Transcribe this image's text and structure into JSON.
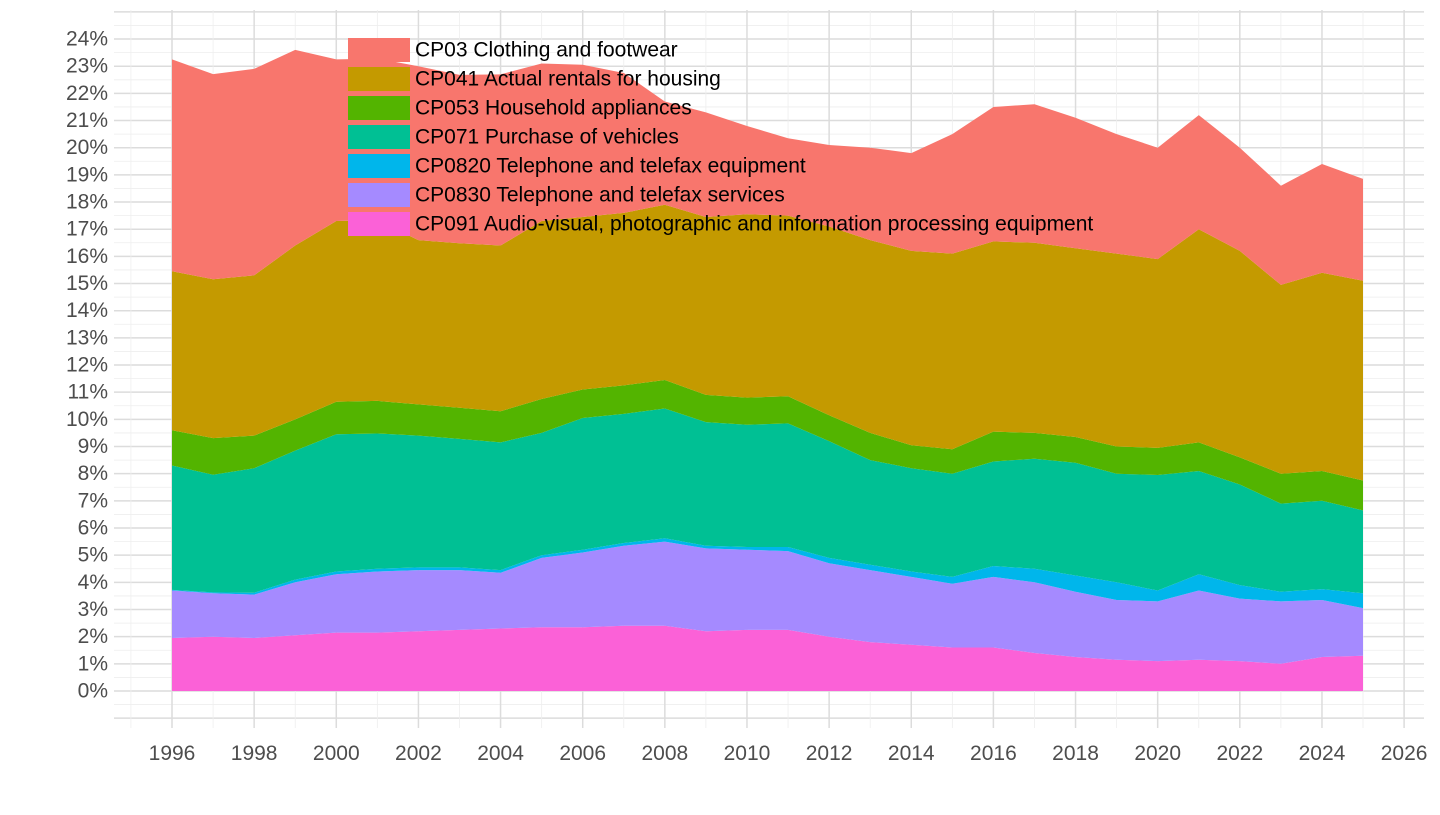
{
  "page": {
    "background": "#FFFFFF"
  },
  "chart_data": {
    "type": "area",
    "stacked": true,
    "title": "",
    "xlabel": "",
    "ylabel": "",
    "grid": "major and minor, on",
    "legend_position": "inside top-left",
    "axis_text_color": "#4D4D4D",
    "legend_text_color": "#000000",
    "grid_major_color": "#DCDCDC",
    "grid_minor_color": "#EEEEEE",
    "xlim": [
      1994.6,
      2026.5
    ],
    "ylim": [
      -1.36,
      25.06
    ],
    "x_tick_years": [
      1996,
      1998,
      2000,
      2002,
      2004,
      2006,
      2008,
      2010,
      2012,
      2014,
      2016,
      2018,
      2020,
      2022,
      2024,
      2026
    ],
    "y_tick_percent": [
      0,
      1,
      2,
      3,
      4,
      5,
      6,
      7,
      8,
      9,
      10,
      11,
      12,
      13,
      14,
      15,
      16,
      17,
      18,
      19,
      20,
      21,
      22,
      23,
      24
    ],
    "y_tick_suffix": "%",
    "x": [
      1996,
      1997,
      1998,
      1999,
      2000,
      2001,
      2002,
      2003,
      2004,
      2005,
      2006,
      2007,
      2008,
      2009,
      2010,
      2011,
      2012,
      2013,
      2014,
      2015,
      2016,
      2017,
      2018,
      2019,
      2020,
      2021,
      2022,
      2023,
      2024,
      2025
    ],
    "series": [
      {
        "code": "CP091",
        "label": "CP091 Audio-visual, photographic and information processing equipment",
        "color": "#FB61D7",
        "values": [
          1.95,
          2.0,
          1.95,
          2.05,
          2.15,
          2.15,
          2.2,
          2.25,
          2.3,
          2.35,
          2.35,
          2.4,
          2.4,
          2.2,
          2.25,
          2.25,
          2.0,
          1.8,
          1.7,
          1.6,
          1.6,
          1.4,
          1.25,
          1.15,
          1.1,
          1.15,
          1.1,
          1.0,
          1.25,
          1.3
        ]
      },
      {
        "code": "CP0830",
        "label": "CP0830 Telephone and telefax services",
        "color": "#A58AFF",
        "values": [
          1.75,
          1.6,
          1.6,
          1.95,
          2.15,
          2.25,
          2.25,
          2.2,
          2.05,
          2.55,
          2.75,
          2.95,
          3.1,
          3.05,
          2.95,
          2.9,
          2.7,
          2.65,
          2.5,
          2.35,
          2.6,
          2.6,
          2.4,
          2.2,
          2.2,
          2.55,
          2.3,
          2.3,
          2.1,
          1.75
        ]
      },
      {
        "code": "CP0820",
        "label": "CP0820 Telephone and telefax equipment",
        "color": "#00B6EB",
        "values": [
          0.02,
          0.03,
          0.07,
          0.1,
          0.1,
          0.1,
          0.1,
          0.1,
          0.1,
          0.1,
          0.1,
          0.1,
          0.12,
          0.1,
          0.1,
          0.15,
          0.2,
          0.2,
          0.2,
          0.25,
          0.4,
          0.5,
          0.6,
          0.65,
          0.4,
          0.6,
          0.5,
          0.35,
          0.4,
          0.55
        ]
      },
      {
        "code": "CP071",
        "label": "CP071 Purchase of vehicles",
        "color": "#00C094",
        "values": [
          4.58,
          4.33,
          4.58,
          4.75,
          5.05,
          4.98,
          4.85,
          4.73,
          4.7,
          4.5,
          4.85,
          4.75,
          4.78,
          4.55,
          4.5,
          4.55,
          4.3,
          3.85,
          3.8,
          3.8,
          3.85,
          4.05,
          4.15,
          4.0,
          4.25,
          3.8,
          3.7,
          3.25,
          3.25,
          3.05
        ]
      },
      {
        "code": "CP053",
        "label": "CP053 Household appliances",
        "color": "#53B400",
        "values": [
          1.3,
          1.35,
          1.2,
          1.15,
          1.2,
          1.2,
          1.15,
          1.15,
          1.15,
          1.25,
          1.05,
          1.05,
          1.05,
          1.0,
          1.0,
          1.0,
          0.95,
          1.0,
          0.85,
          0.9,
          1.1,
          0.95,
          0.95,
          1.0,
          1.0,
          1.05,
          1.0,
          1.1,
          1.1,
          1.1
        ]
      },
      {
        "code": "CP041",
        "label": "CP041 Actual rentals for housing",
        "color": "#C49A00",
        "values": [
          5.85,
          5.85,
          5.9,
          6.4,
          6.65,
          6.65,
          6.05,
          6.05,
          6.1,
          6.55,
          6.35,
          6.35,
          6.45,
          6.55,
          6.75,
          6.65,
          6.95,
          7.1,
          7.15,
          7.2,
          7.0,
          7.0,
          6.95,
          7.1,
          6.95,
          7.85,
          7.6,
          6.95,
          7.3,
          7.35
        ]
      },
      {
        "code": "CP03",
        "label": "CP03 Clothing and footwear",
        "color": "#F8766D",
        "values": [
          7.8,
          7.55,
          7.6,
          7.2,
          5.95,
          5.95,
          6.4,
          6.2,
          6.3,
          5.8,
          5.6,
          5.15,
          3.8,
          3.85,
          3.25,
          2.85,
          3.0,
          3.4,
          3.6,
          4.4,
          4.95,
          5.1,
          4.8,
          4.4,
          4.1,
          4.2,
          3.8,
          3.65,
          4.0,
          3.75
        ]
      }
    ],
    "legend_order_top_to_bottom": [
      "CP03",
      "CP041",
      "CP053",
      "CP071",
      "CP0820",
      "CP0830",
      "CP091"
    ]
  }
}
